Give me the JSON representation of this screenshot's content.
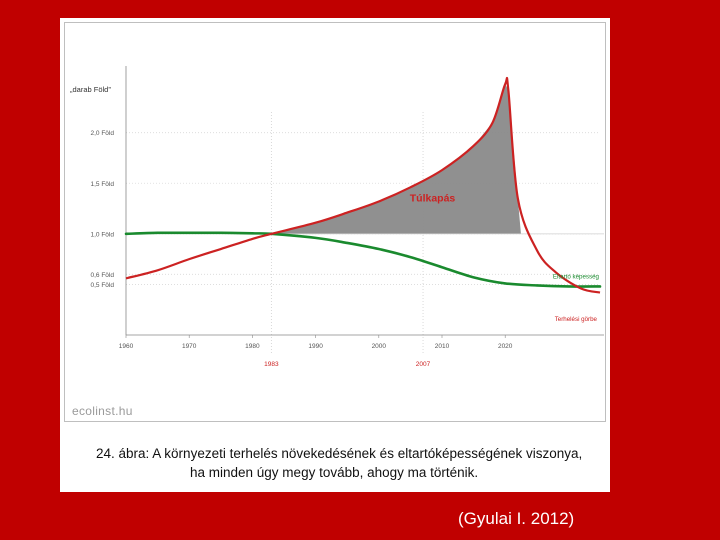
{
  "chart_data": {
    "type": "line",
    "y_axis_title": "„darab Föld”",
    "y_tick_labels": [
      {
        "value": 2.0,
        "label": "2,0 Föld"
      },
      {
        "value": 1.5,
        "label": "1,5 Föld"
      },
      {
        "value": 1.0,
        "label": "1,0 Föld"
      },
      {
        "value": 0.6,
        "label": "0,6 Föld"
      },
      {
        "value": 0.5,
        "label": "0,5 Föld"
      }
    ],
    "x_ticks": [
      1960,
      1970,
      1980,
      1990,
      2000,
      2010,
      2020
    ],
    "x_marker_years": [
      {
        "value": 1983,
        "label": "1983"
      },
      {
        "value": 2007,
        "label": "2007"
      }
    ],
    "xlim": [
      1960,
      2035
    ],
    "ylim": [
      0.0,
      2.6
    ],
    "series": [
      {
        "name": "Terhelési görbe",
        "color": "#cc2222",
        "x": [
          1960,
          1965,
          1970,
          1975,
          1980,
          1983,
          1990,
          1995,
          2000,
          2005,
          2010,
          2015,
          2018,
          2020,
          2020.5,
          2022,
          2025,
          2028,
          2032,
          2035
        ],
        "y": [
          0.56,
          0.64,
          0.75,
          0.85,
          0.95,
          1.0,
          1.11,
          1.21,
          1.32,
          1.46,
          1.63,
          1.87,
          2.1,
          2.48,
          2.42,
          1.35,
          0.84,
          0.62,
          0.46,
          0.42
        ]
      },
      {
        "name": "Eltartó képesség",
        "color": "#1a8a2e",
        "x": [
          1960,
          1965,
          1970,
          1975,
          1980,
          1983,
          1990,
          1995,
          2000,
          2005,
          2010,
          2015,
          2020,
          2025,
          2030,
          2035
        ],
        "y": [
          1.0,
          1.01,
          1.01,
          1.01,
          1.005,
          1.0,
          0.96,
          0.91,
          0.85,
          0.77,
          0.67,
          0.57,
          0.51,
          0.49,
          0.48,
          0.48
        ]
      }
    ],
    "overshoot": {
      "label": "Túlkapás",
      "from": 1983,
      "to": 2020.5,
      "baseline": 1.0,
      "color": "#8a8a8a"
    }
  },
  "watermark": "ecolinst.hu",
  "caption": {
    "line1": "24. ábra: A környezeti terhelés növekedésének és eltartóképességének viszonya,",
    "line2": "ha minden úgy megy tovább, ahogy ma történik."
  },
  "source": "(Gyulai I. 2012)"
}
